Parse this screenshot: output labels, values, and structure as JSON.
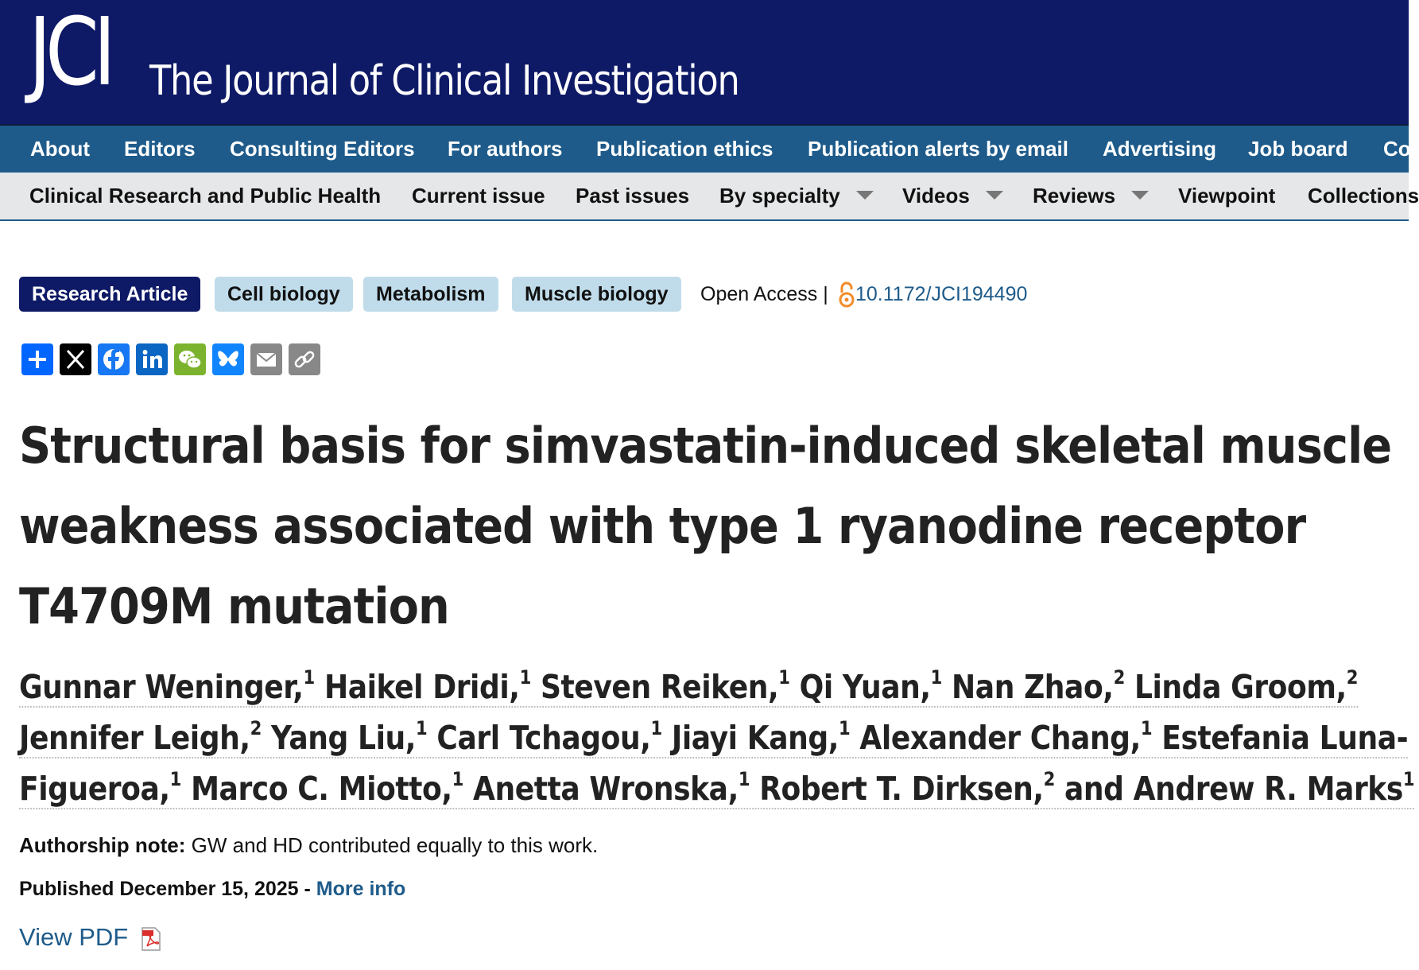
{
  "header": {
    "logo": "JCI",
    "journal_title": "The Journal of Clinical Investigation"
  },
  "nav_primary": [
    {
      "label": "About"
    },
    {
      "label": "Editors"
    },
    {
      "label": "Consulting Editors"
    },
    {
      "label": "For authors"
    },
    {
      "label": "Publication ethics"
    },
    {
      "label": "Publication alerts by email"
    },
    {
      "label": "Advertising"
    },
    {
      "label": "Job board"
    },
    {
      "label": "Co"
    }
  ],
  "nav_secondary": [
    {
      "label": "Clinical Research and Public Health"
    },
    {
      "label": "Current issue"
    },
    {
      "label": "Past issues"
    },
    {
      "label": "By specialty",
      "dropdown": true
    },
    {
      "label": "Videos",
      "dropdown": true
    },
    {
      "label": "Reviews",
      "dropdown": true
    },
    {
      "label": "Viewpoint"
    },
    {
      "label": "Collections"
    }
  ],
  "article": {
    "tags": [
      "Research Article",
      "Cell biology",
      "Metabolism",
      "Muscle biology"
    ],
    "open_access": "Open Access |",
    "doi": "10.1172/JCI194490",
    "share_icons": [
      "add-share-icon",
      "x-icon",
      "facebook-icon",
      "linkedin-icon",
      "wechat-icon",
      "bluesky-icon",
      "email-icon",
      "link-icon"
    ],
    "title_lines": [
      "Structural basis for simvastatin-induced skeletal muscle",
      "weakness associated with type 1 ryanodine receptor",
      "T4709M mutation"
    ],
    "authors": [
      {
        "name": "Gunnar Weninger,",
        "aff": "1"
      },
      {
        "name": "Haikel Dridi,",
        "aff": "1"
      },
      {
        "name": "Steven Reiken,",
        "aff": "1"
      },
      {
        "name": "Qi Yuan,",
        "aff": "1"
      },
      {
        "name": "Nan Zhao,",
        "aff": "2"
      },
      {
        "name": "Linda Groom,",
        "aff": "2"
      },
      {
        "name": "Jennifer Leigh,",
        "aff": "2"
      },
      {
        "name": "Yang Liu,",
        "aff": "1"
      },
      {
        "name": "Carl Tchagou,",
        "aff": "1"
      },
      {
        "name": "Jiayi Kang,",
        "aff": "1"
      },
      {
        "name": "Alexander Chang,",
        "aff": "1"
      },
      {
        "name": "Estefania Luna-",
        "aff": ""
      },
      {
        "name": "Figueroa,",
        "aff": "1"
      },
      {
        "name": "Marco C. Miotto,",
        "aff": "1"
      },
      {
        "name": "Anetta Wronska,",
        "aff": "1"
      },
      {
        "name": "Robert T. Dirksen,",
        "aff": "2"
      },
      {
        "name": "and Andrew R. Marks",
        "aff": "1"
      }
    ],
    "authorship_note_label": "Authorship note:",
    "authorship_note_text": "GW and HD contributed equally to this work.",
    "published": "Published December 15, 2025 -",
    "more_info": "More info",
    "view_pdf": "View PDF"
  },
  "colors": {
    "header_bg": "#0e1a66",
    "nav_primary_bg": "#1e5b8a",
    "nav_secondary_bg": "#e6e7e8",
    "tag_light_bg": "#c0dcea",
    "link": "#1e5b8a",
    "open_access_orange": "#f28c28"
  }
}
